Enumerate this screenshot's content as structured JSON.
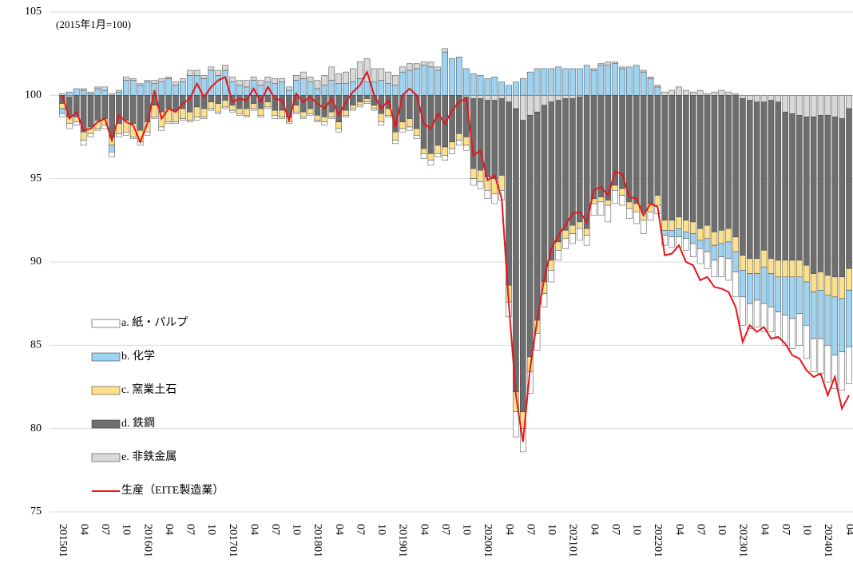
{
  "chart_data": {
    "type": "bar",
    "subtitle": "(2015年1月=100)",
    "categories": [
      "201501",
      null,
      null,
      "04",
      null,
      null,
      "07",
      null,
      null,
      "10",
      null,
      null,
      "201601",
      null,
      null,
      "04",
      null,
      null,
      "07",
      null,
      null,
      "10",
      null,
      null,
      "201701",
      null,
      null,
      "04",
      null,
      null,
      "07",
      null,
      null,
      "10",
      null,
      null,
      "201801",
      null,
      null,
      "04",
      null,
      null,
      "07",
      null,
      null,
      "10",
      null,
      null,
      "201901",
      null,
      null,
      "04",
      null,
      null,
      "07",
      null,
      null,
      "10",
      null,
      null,
      "202001",
      null,
      null,
      "04",
      null,
      null,
      "07",
      null,
      null,
      "10",
      null,
      null,
      "202101",
      null,
      null,
      "04",
      null,
      null,
      "07",
      null,
      null,
      "10",
      null,
      null,
      "202201",
      null,
      null,
      "04",
      null,
      null,
      "07",
      null,
      null,
      "10",
      null,
      null,
      "202301",
      null,
      null,
      "04",
      null,
      null,
      "07",
      null,
      null,
      "10",
      null,
      null,
      "202401",
      null,
      null,
      "04"
    ],
    "ylim": [
      75,
      105
    ],
    "yticks": [
      75,
      80,
      85,
      90,
      95,
      100,
      105
    ],
    "grid": true,
    "series": [
      {
        "name": "a. 紙・パルプ",
        "color": "#ffffff",
        "values": [
          -0.2,
          -0.3,
          -0.2,
          -0.3,
          -0.2,
          -0.1,
          -0.2,
          -0.3,
          -0.2,
          -0.2,
          -0.1,
          -0.2,
          -0.2,
          -0.1,
          -0.2,
          -0.1,
          -0.1,
          -0.1,
          -0.1,
          -0.2,
          -0.1,
          -0.1,
          -0.1,
          -0.1,
          -0.1,
          -0.1,
          -0.1,
          -0.1,
          -0.1,
          -0.1,
          -0.2,
          -0.1,
          -0.1,
          -0.1,
          -0.1,
          -0.1,
          -0.1,
          -0.2,
          -0.1,
          -0.2,
          -0.1,
          -0.1,
          -0.1,
          -0.1,
          -0.1,
          -0.2,
          -0.1,
          -0.2,
          -0.2,
          -0.2,
          -0.2,
          -0.3,
          -0.3,
          -0.2,
          -0.3,
          -0.3,
          -0.3,
          -0.3,
          -0.4,
          -0.4,
          -0.5,
          -0.6,
          -0.6,
          -0.9,
          -1.5,
          -1.4,
          -1.3,
          -1.0,
          -0.8,
          -0.7,
          -0.6,
          -0.6,
          -0.6,
          -0.7,
          -0.6,
          -0.7,
          -0.8,
          -1.0,
          -0.8,
          -0.6,
          -0.6,
          -0.7,
          -0.8,
          -0.5,
          -0.5,
          -0.6,
          -0.6,
          -0.6,
          -0.7,
          -0.8,
          -0.9,
          -1.0,
          -1.0,
          -1.2,
          -1.3,
          -1.5,
          -1.7,
          -1.5,
          -1.6,
          -1.7,
          -1.5,
          -1.6,
          -1.8,
          -1.8,
          -1.9,
          -2.0,
          -2.0,
          -2.1,
          -2.2,
          -2.0,
          -2.3,
          -2.2
        ]
      },
      {
        "name": "b. 化学",
        "color": "#9dd3f3",
        "values": [
          -0.3,
          0.2,
          0.4,
          0.3,
          0.1,
          0.4,
          0.3,
          -0.4,
          0.2,
          0.9,
          0.9,
          0.6,
          0.8,
          0.7,
          0.8,
          1.0,
          0.6,
          0.8,
          1.2,
          1.2,
          1.0,
          1.5,
          1.2,
          1.5,
          0.8,
          0.6,
          0.5,
          0.9,
          0.6,
          0.8,
          0.7,
          0.8,
          0.3,
          0.9,
          1.0,
          0.8,
          0.4,
          0.6,
          0.9,
          0.7,
          0.7,
          0.8,
          1.0,
          0.8,
          0.8,
          0.9,
          0.7,
          0.6,
          1.4,
          1.5,
          1.6,
          1.8,
          1.7,
          1.5,
          2.6,
          2.2,
          2.3,
          1.6,
          1.3,
          1.2,
          1.0,
          1.1,
          0.8,
          0.6,
          0.8,
          1.0,
          1.4,
          1.6,
          1.6,
          1.6,
          1.7,
          1.6,
          1.6,
          1.6,
          1.8,
          1.5,
          1.8,
          1.8,
          1.9,
          1.6,
          1.7,
          1.8,
          1.4,
          1.0,
          0.5,
          -0.3,
          -0.4,
          -0.5,
          -0.4,
          -0.6,
          -0.5,
          -0.8,
          -0.9,
          -0.8,
          -1.0,
          -1.2,
          -1.6,
          -1.8,
          -1.6,
          -2.2,
          -2.0,
          -2.1,
          -2.3,
          -2.5,
          -2.2,
          -2.6,
          -2.8,
          -2.9,
          -3.0,
          -3.5,
          -3.2,
          -3.4
        ]
      },
      {
        "name": "c. 窯業土石",
        "color": "#fde08a",
        "values": [
          -0.3,
          -0.4,
          -0.3,
          -0.5,
          -0.4,
          -0.5,
          -0.4,
          -0.5,
          -0.6,
          -0.7,
          -0.8,
          -0.7,
          -0.6,
          -0.7,
          -0.9,
          -0.8,
          -0.7,
          -0.6,
          -0.5,
          -0.6,
          -0.5,
          -0.4,
          -0.5,
          -0.4,
          -0.3,
          -0.3,
          -0.4,
          -0.3,
          -0.4,
          -0.3,
          -0.3,
          -0.4,
          -0.3,
          -0.4,
          -0.3,
          -0.3,
          -0.3,
          -0.3,
          -0.3,
          -0.4,
          -0.3,
          -0.2,
          -0.2,
          -0.2,
          -0.2,
          -0.5,
          -0.4,
          -0.5,
          -0.4,
          -0.5,
          -0.4,
          -0.3,
          -0.4,
          -0.5,
          -0.5,
          -0.4,
          -0.4,
          -0.5,
          -0.6,
          -0.7,
          -0.8,
          -0.9,
          -0.9,
          -1.0,
          -1.2,
          -1.0,
          -0.9,
          -0.8,
          -0.7,
          -0.6,
          -0.5,
          -0.5,
          -0.5,
          -0.4,
          -0.4,
          -0.3,
          -0.3,
          -0.3,
          -0.3,
          -0.4,
          -0.4,
          -0.5,
          -0.5,
          -0.5,
          -0.6,
          -0.6,
          -0.6,
          -0.7,
          -0.7,
          -0.7,
          -0.7,
          -0.8,
          -0.8,
          -0.8,
          -0.8,
          -0.9,
          -0.9,
          -0.9,
          -0.9,
          -1.0,
          -0.9,
          -1.0,
          -1.0,
          -1.0,
          -1.0,
          -1.0,
          -1.1,
          -1.1,
          -1.2,
          -1.2,
          -1.3,
          -1.3
        ]
      },
      {
        "name": "d. 鉄鋼",
        "color": "#6e6e6e",
        "values": [
          -0.5,
          -1.2,
          -1.3,
          -2.2,
          -1.9,
          -1.5,
          -1.4,
          -2.5,
          -1.7,
          -1.5,
          -1.7,
          -2.1,
          -1.6,
          -0.6,
          -1.0,
          -0.8,
          -0.9,
          -0.8,
          -1.0,
          -0.7,
          -0.8,
          -0.4,
          -0.5,
          -0.3,
          -0.6,
          -0.8,
          -0.8,
          -0.5,
          -0.8,
          -0.4,
          -0.9,
          -0.9,
          -1.3,
          -0.6,
          -1.0,
          -0.8,
          -1.2,
          -1.3,
          -1.0,
          -1.6,
          -0.9,
          -0.6,
          -0.4,
          -0.2,
          -0.6,
          -1.1,
          -0.8,
          -2.2,
          -1.6,
          -1.4,
          -2.0,
          -3.2,
          -3.5,
          -3.0,
          -3.1,
          -2.8,
          -2.3,
          -2.4,
          -4.2,
          -4.3,
          -4.6,
          -4.7,
          -4.6,
          -11.0,
          -17.0,
          -17.5,
          -14.5,
          -12.5,
          -10.6,
          -9.5,
          -8.5,
          -7.9,
          -7.6,
          -7.5,
          -8.0,
          -6.2,
          -6.1,
          -6.3,
          -5.4,
          -5.6,
          -6.4,
          -6.5,
          -7.0,
          -6.5,
          -6.0,
          -7.5,
          -7.5,
          -7.3,
          -7.5,
          -7.6,
          -8.0,
          -7.8,
          -8.2,
          -8.1,
          -8.0,
          -8.5,
          -9.4,
          -9.5,
          -9.4,
          -8.9,
          -9.5,
          -9.5,
          -8.9,
          -8.8,
          -8.7,
          -8.9,
          -9.4,
          -9.4,
          -9.6,
          -9.6,
          -9.5,
          -9.6
        ]
      },
      {
        "name": "e. 非鉄金属",
        "color": "#d9d9d9",
        "values": [
          0.1,
          -0.1,
          0,
          0.1,
          0.1,
          0.1,
          0.2,
          0.1,
          0.1,
          0.2,
          0.1,
          0.1,
          0.1,
          0.2,
          0.2,
          0.1,
          0.2,
          0.2,
          0.3,
          0.3,
          0.2,
          0.2,
          0.3,
          0.3,
          0.3,
          0.3,
          0.4,
          0.2,
          0.3,
          0.3,
          0.3,
          0.2,
          0.2,
          0.3,
          0.4,
          0.3,
          0.5,
          0.6,
          0.8,
          0.6,
          0.7,
          0.8,
          1.0,
          1.4,
          0.8,
          0.7,
          0.7,
          0.6,
          0.3,
          0.4,
          0.3,
          0.2,
          0.3,
          0.2,
          0.2,
          0,
          0,
          -0.1,
          -0.2,
          -0.2,
          -0.3,
          -0.3,
          -0.2,
          -0.4,
          -0.8,
          -1.5,
          -1.2,
          -1.0,
          -0.6,
          -0.4,
          -0.3,
          -0.2,
          -0.2,
          -0.1,
          0,
          0.1,
          0.1,
          0.2,
          0.1,
          0.1,
          0,
          0,
          0.1,
          0.1,
          0.1,
          0.2,
          0.3,
          0.5,
          0.3,
          0.2,
          0.3,
          0.1,
          0.2,
          0.3,
          0.2,
          0.1,
          -0.2,
          -0.3,
          -0.4,
          -0.4,
          -0.3,
          -0.4,
          -1.0,
          -1.1,
          -1.2,
          -1.3,
          -1.3,
          -1.2,
          -1.2,
          -1.3,
          -1.4,
          -0.8
        ]
      },
      {
        "name": "生産（EITE製造業）",
        "color": "#e8141a",
        "type": "line",
        "values": [
          100,
          98.6,
          99.0,
          97.9,
          98.0,
          98.4,
          98.6,
          97.3,
          98.8,
          98.4,
          98.2,
          97.2,
          98.3,
          100.3,
          98.6,
          99.2,
          99.0,
          99.5,
          99.8,
          100.7,
          99.9,
          100.5,
          100.9,
          101.1,
          99.6,
          99.8,
          99.7,
          100.4,
          99.6,
          100.5,
          99.8,
          99.7,
          98.5,
          100.1,
          99.6,
          99.9,
          99.5,
          99.2,
          99.8,
          98.8,
          99.6,
          100.2,
          100.6,
          101.4,
          100.0,
          99.2,
          99.7,
          98.1,
          100.0,
          100.4,
          100.0,
          98.3,
          98.0,
          98.9,
          98.3,
          99.1,
          99.6,
          99.8,
          96.4,
          96.7,
          94.9,
          95.2,
          93.8,
          87.5,
          82.0,
          79.2,
          83.6,
          86.5,
          89.0,
          90.8,
          91.6,
          92.2,
          92.9,
          93.0,
          92.4,
          94.3,
          94.5,
          94.0,
          95.4,
          95.3,
          93.9,
          93.8,
          92.8,
          93.5,
          93.3,
          90.4,
          90.5,
          91.0,
          90.0,
          89.8,
          88.9,
          89.1,
          88.5,
          88.4,
          88.2,
          87.3,
          85.2,
          86.2,
          85.8,
          86.1,
          85.4,
          85.5,
          85.1,
          84.4,
          84.2,
          83.5,
          83.1,
          83.3,
          82.0,
          83.1,
          81.2,
          82.0
        ]
      }
    ]
  }
}
